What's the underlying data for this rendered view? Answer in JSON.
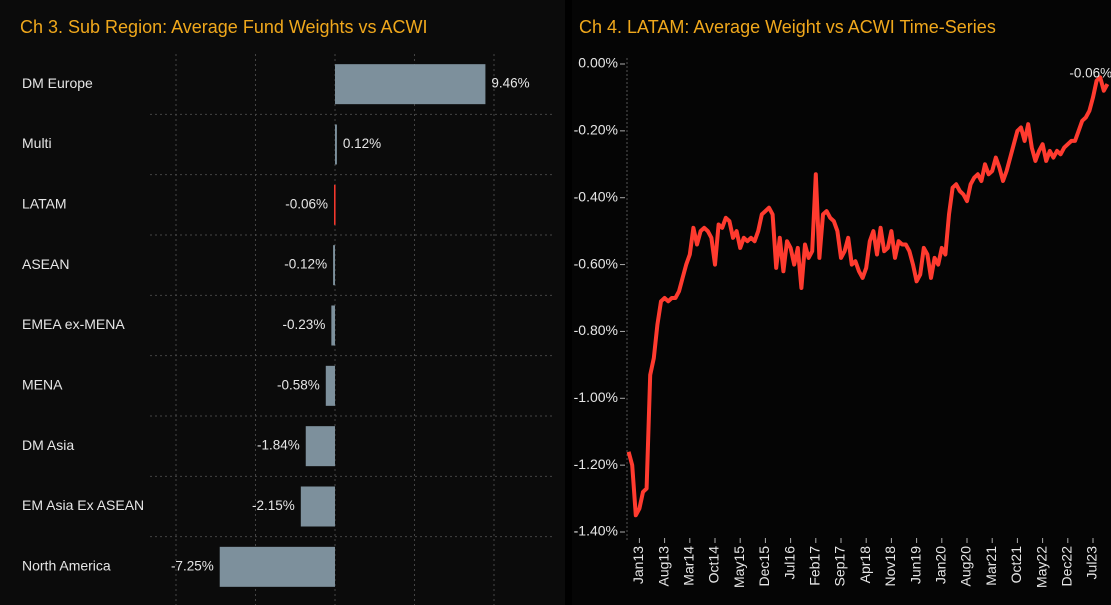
{
  "chart_data": [
    {
      "type": "hbar",
      "title": "Ch 3. Sub Region:  Average Fund Weights vs ACWI",
      "categories": [
        "DM Europe",
        "Multi",
        "LATAM",
        "ASEAN",
        "EMEA ex-MENA",
        "MENA",
        "DM Asia",
        "EM Asia Ex ASEAN",
        "North America"
      ],
      "values": [
        9.46,
        0.12,
        -0.06,
        -0.12,
        -0.23,
        -0.58,
        -1.84,
        -2.15,
        -7.25
      ],
      "value_labels": [
        "9.46%",
        "0.12%",
        "-0.06%",
        "-0.12%",
        "-0.23%",
        "-0.58%",
        "-1.84%",
        "-2.15%",
        "-7.25%"
      ],
      "colors": [
        "#7d909c",
        "#7d909c",
        "#ff3b2f",
        "#7d909c",
        "#7d909c",
        "#7d909c",
        "#7d909c",
        "#7d909c",
        "#7d909c"
      ],
      "xlim": [
        -10,
        10
      ],
      "xticks": [
        -10,
        -5,
        0,
        5,
        10
      ],
      "grid": true
    },
    {
      "type": "line",
      "title": "Ch 4. LATAM:  Average Weight vs ACWI Time-Series",
      "x": [
        "2012-10",
        "2012-11",
        "2012-12",
        "2013-01",
        "2013-02",
        "2013-03",
        "2013-04",
        "2013-05",
        "2013-06",
        "2013-07",
        "2013-08",
        "2013-09",
        "2013-10",
        "2013-11",
        "2013-12",
        "2014-01",
        "2014-02",
        "2014-03",
        "2014-04",
        "2014-05",
        "2014-06",
        "2014-07",
        "2014-08",
        "2014-09",
        "2014-10",
        "2014-11",
        "2014-12",
        "2015-01",
        "2015-02",
        "2015-03",
        "2015-04",
        "2015-05",
        "2015-06",
        "2015-07",
        "2015-08",
        "2015-09",
        "2015-10",
        "2015-11",
        "2015-12",
        "2016-01",
        "2016-02",
        "2016-03",
        "2016-04",
        "2016-05",
        "2016-06",
        "2016-07",
        "2016-08",
        "2016-09",
        "2016-10",
        "2016-11",
        "2016-12",
        "2017-01",
        "2017-02",
        "2017-03",
        "2017-04",
        "2017-05",
        "2017-06",
        "2017-07",
        "2017-08",
        "2017-09",
        "2017-10",
        "2017-11",
        "2017-12",
        "2018-01",
        "2018-02",
        "2018-03",
        "2018-04",
        "2018-05",
        "2018-06",
        "2018-07",
        "2018-08",
        "2018-09",
        "2018-10",
        "2018-11",
        "2018-12",
        "2019-01",
        "2019-02",
        "2019-03",
        "2019-04",
        "2019-05",
        "2019-06",
        "2019-07",
        "2019-08",
        "2019-09",
        "2019-10",
        "2019-11",
        "2019-12",
        "2020-01",
        "2020-02",
        "2020-03",
        "2020-04",
        "2020-05",
        "2020-06",
        "2020-07",
        "2020-08",
        "2020-09",
        "2020-10",
        "2020-11",
        "2020-12",
        "2021-01",
        "2021-02",
        "2021-03",
        "2021-04",
        "2021-05",
        "2021-06",
        "2021-07",
        "2021-08",
        "2021-09",
        "2021-10",
        "2021-11",
        "2021-12",
        "2022-01",
        "2022-02",
        "2022-03",
        "2022-04",
        "2022-05",
        "2022-06",
        "2022-07",
        "2022-08",
        "2022-09",
        "2022-10",
        "2022-11",
        "2022-12",
        "2023-01",
        "2023-02",
        "2023-03",
        "2023-04",
        "2023-05",
        "2023-06",
        "2023-07",
        "2023-08",
        "2023-09",
        "2023-10",
        "2023-11"
      ],
      "series": [
        {
          "name": "LATAM",
          "color": "#ff3b2f",
          "values": [
            -1.16,
            -1.2,
            -1.35,
            -1.33,
            -1.28,
            -1.27,
            -0.93,
            -0.88,
            -0.78,
            -0.71,
            -0.7,
            -0.71,
            -0.7,
            -0.7,
            -0.68,
            -0.64,
            -0.6,
            -0.57,
            -0.49,
            -0.54,
            -0.5,
            -0.49,
            -0.5,
            -0.52,
            -0.6,
            -0.48,
            -0.49,
            -0.46,
            -0.47,
            -0.52,
            -0.5,
            -0.55,
            -0.52,
            -0.53,
            -0.52,
            -0.53,
            -0.5,
            -0.45,
            -0.44,
            -0.43,
            -0.45,
            -0.61,
            -0.52,
            -0.62,
            -0.53,
            -0.55,
            -0.6,
            -0.55,
            -0.67,
            -0.54,
            -0.58,
            -0.56,
            -0.33,
            -0.58,
            -0.45,
            -0.44,
            -0.46,
            -0.47,
            -0.5,
            -0.58,
            -0.56,
            -0.52,
            -0.6,
            -0.59,
            -0.62,
            -0.64,
            -0.61,
            -0.53,
            -0.5,
            -0.57,
            -0.49,
            -0.56,
            -0.55,
            -0.5,
            -0.58,
            -0.53,
            -0.54,
            -0.54,
            -0.56,
            -0.6,
            -0.65,
            -0.63,
            -0.55,
            -0.57,
            -0.64,
            -0.58,
            -0.6,
            -0.55,
            -0.57,
            -0.45,
            -0.37,
            -0.36,
            -0.38,
            -0.39,
            -0.41,
            -0.36,
            -0.34,
            -0.33,
            -0.35,
            -0.3,
            -0.33,
            -0.32,
            -0.28,
            -0.31,
            -0.35,
            -0.32,
            -0.28,
            -0.24,
            -0.2,
            -0.19,
            -0.23,
            -0.18,
            -0.25,
            -0.29,
            -0.26,
            -0.24,
            -0.29,
            -0.26,
            -0.28,
            -0.26,
            -0.27,
            -0.25,
            -0.24,
            -0.23,
            -0.23,
            -0.2,
            -0.17,
            -0.16,
            -0.14,
            -0.1,
            -0.05,
            -0.04,
            -0.08,
            -0.06
          ]
        }
      ],
      "last_value_label": "-0.06%",
      "xlim": [
        "2012-09",
        "2023-12"
      ],
      "xticks": [
        {
          "value": "2013-01",
          "label": "Jan13"
        },
        {
          "value": "2013-08",
          "label": "Aug13"
        },
        {
          "value": "2014-03",
          "label": "Mar14"
        },
        {
          "value": "2014-10",
          "label": "Oct14"
        },
        {
          "value": "2015-05",
          "label": "May15"
        },
        {
          "value": "2015-12",
          "label": "Dec15"
        },
        {
          "value": "2016-07",
          "label": "Jul16"
        },
        {
          "value": "2017-02",
          "label": "Feb17"
        },
        {
          "value": "2017-09",
          "label": "Sep17"
        },
        {
          "value": "2018-04",
          "label": "Apr18"
        },
        {
          "value": "2018-11",
          "label": "Nov18"
        },
        {
          "value": "2019-06",
          "label": "Jun19"
        },
        {
          "value": "2020-01",
          "label": "Jan20"
        },
        {
          "value": "2020-08",
          "label": "Aug20"
        },
        {
          "value": "2021-03",
          "label": "Mar21"
        },
        {
          "value": "2021-10",
          "label": "Oct21"
        },
        {
          "value": "2022-05",
          "label": "May22"
        },
        {
          "value": "2022-12",
          "label": "Dec22"
        },
        {
          "value": "2023-07",
          "label": "Jul23"
        }
      ],
      "ylim": [
        -1.4,
        0
      ],
      "yticks": [
        {
          "value": 0,
          "label": "0.00%"
        },
        {
          "value": -0.2,
          "label": "-0.20%"
        },
        {
          "value": -0.4,
          "label": "-0.40%"
        },
        {
          "value": -0.6,
          "label": "-0.60%"
        },
        {
          "value": -0.8,
          "label": "-0.80%"
        },
        {
          "value": -1.0,
          "label": "-1.00%"
        },
        {
          "value": -1.2,
          "label": "-1.20%"
        },
        {
          "value": -1.4,
          "label": "-1.40%"
        }
      ],
      "grid": false
    }
  ]
}
